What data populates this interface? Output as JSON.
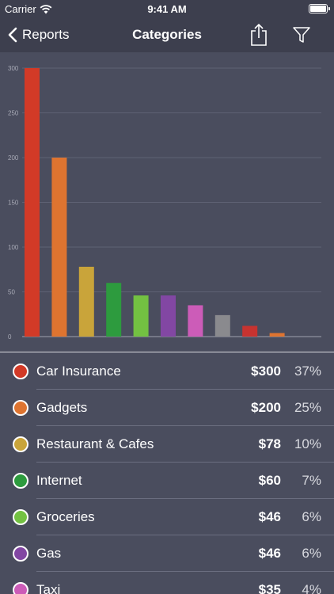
{
  "status_bar": {
    "carrier": "Carrier",
    "time": "9:41 AM"
  },
  "nav": {
    "back_label": "Reports",
    "title": "Categories"
  },
  "icons": {
    "back": "chevron-left-icon",
    "share": "share-icon",
    "filter": "filter-icon",
    "wifi": "wifi-icon",
    "battery": "battery-icon"
  },
  "chart_data": {
    "type": "bar",
    "categories": [
      "Car Insurance",
      "Gadgets",
      "Restaurant & Cafes",
      "Internet",
      "Groceries",
      "Gas",
      "Taxi",
      "",
      "",
      ""
    ],
    "values": [
      300,
      200,
      78,
      60,
      46,
      46,
      35,
      24,
      12,
      4
    ],
    "colors": [
      "#d23a27",
      "#de7430",
      "#c9a43a",
      "#2d9b3e",
      "#73c142",
      "#8247a3",
      "#cc5cb8",
      "#8a8a8e",
      "#c73330",
      "#de7430"
    ],
    "ylim": [
      0,
      300
    ],
    "yticks": [
      0,
      50,
      100,
      150,
      200,
      250,
      300
    ],
    "grid": true
  },
  "list": [
    {
      "name": "Car Insurance",
      "amount": "$300",
      "pct": "37%",
      "color": "#d23a27"
    },
    {
      "name": "Gadgets",
      "amount": "$200",
      "pct": "25%",
      "color": "#de7430"
    },
    {
      "name": "Restaurant & Cafes",
      "amount": "$78",
      "pct": "10%",
      "color": "#c9a43a"
    },
    {
      "name": "Internet",
      "amount": "$60",
      "pct": "7%",
      "color": "#2d9b3e"
    },
    {
      "name": "Groceries",
      "amount": "$46",
      "pct": "6%",
      "color": "#73c142"
    },
    {
      "name": "Gas",
      "amount": "$46",
      "pct": "6%",
      "color": "#8247a3"
    },
    {
      "name": "Taxi",
      "amount": "$35",
      "pct": "4%",
      "color": "#cc5cb8"
    }
  ]
}
